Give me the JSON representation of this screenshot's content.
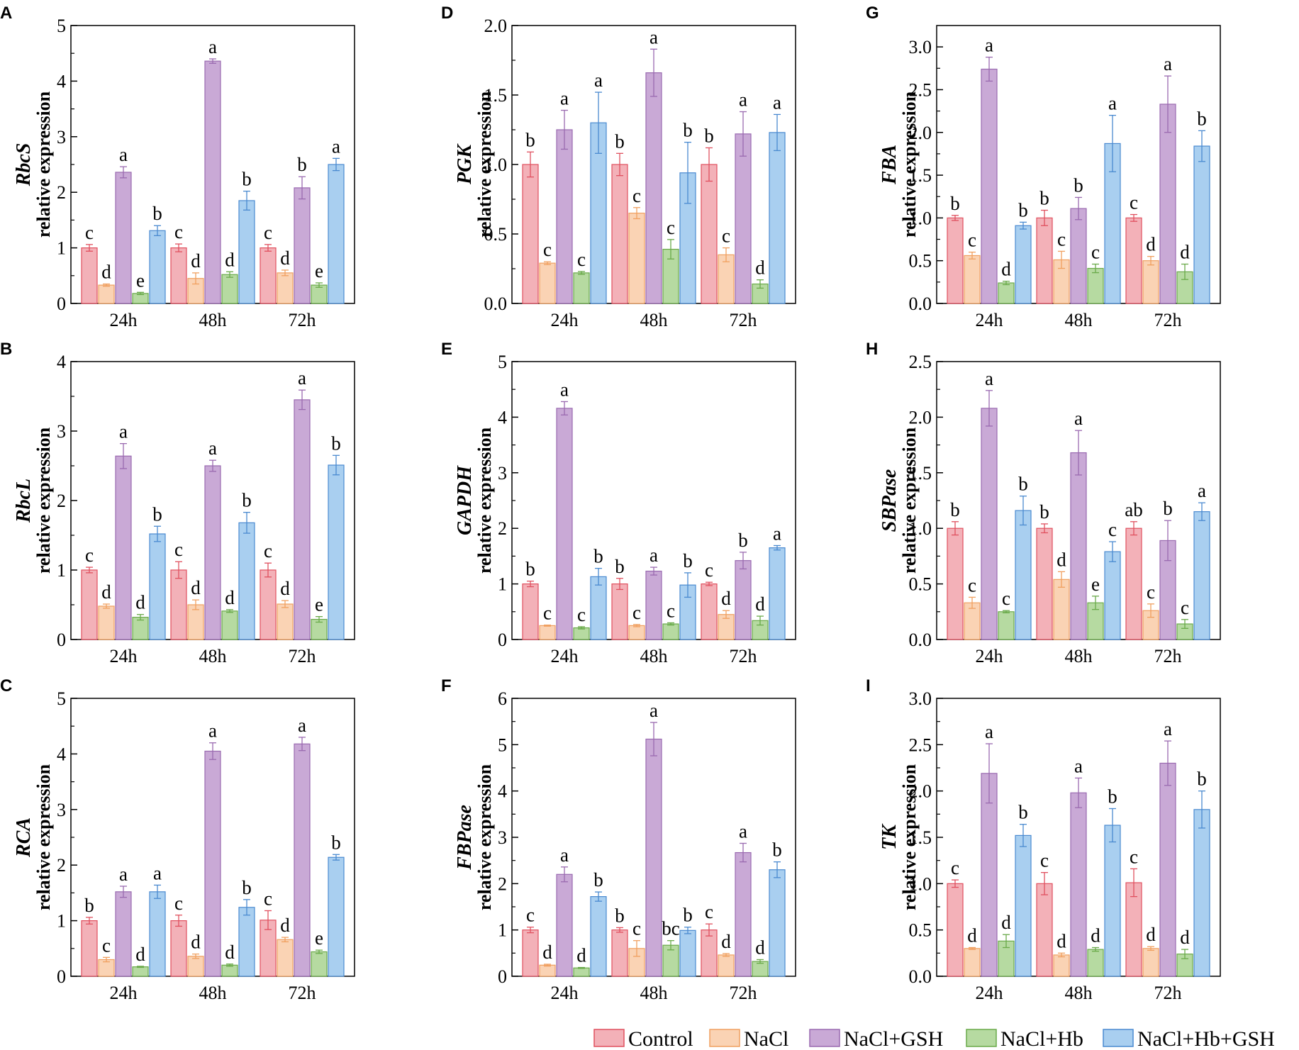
{
  "legend": [
    {
      "name": "Control",
      "fill": "#f3b1b8",
      "stroke": "#e0505f"
    },
    {
      "name": "NaCl",
      "fill": "#fad3b4",
      "stroke": "#f0a060"
    },
    {
      "name": "NaCl+GSH",
      "fill": "#c9a9d6",
      "stroke": "#9a6ab0"
    },
    {
      "name": "NaCl+Hb",
      "fill": "#b6daa1",
      "stroke": "#6aaa4a"
    },
    {
      "name": "NaCl+Hb+GSH",
      "fill": "#a9cff0",
      "stroke": "#4a8ad0"
    }
  ],
  "ylabel_suffix": "relative expression",
  "chart_data": [
    {
      "panel": "A",
      "gene": "RbcS",
      "type": "bar",
      "categories": [
        "24h",
        "48h",
        "72h"
      ],
      "ylim": [
        0,
        5
      ],
      "yticks": [
        "0",
        "1",
        "2",
        "3",
        "4",
        "5"
      ],
      "series": [
        {
          "name": "Control",
          "values": [
            1.0,
            1.0,
            1.0
          ],
          "errors": [
            0.06,
            0.07,
            0.06
          ],
          "letters": [
            "c",
            "c",
            "c"
          ]
        },
        {
          "name": "NaCl",
          "values": [
            0.33,
            0.45,
            0.55
          ],
          "errors": [
            0.02,
            0.1,
            0.05
          ],
          "letters": [
            "d",
            "d",
            "d"
          ]
        },
        {
          "name": "NaCl+GSH",
          "values": [
            2.36,
            4.36,
            2.08
          ],
          "errors": [
            0.1,
            0.04,
            0.2
          ],
          "letters": [
            "a",
            "a",
            "b"
          ]
        },
        {
          "name": "NaCl+Hb",
          "values": [
            0.18,
            0.52,
            0.33
          ],
          "errors": [
            0.02,
            0.05,
            0.04
          ],
          "letters": [
            "e",
            "d",
            "e"
          ]
        },
        {
          "name": "NaCl+Hb+GSH",
          "values": [
            1.31,
            1.85,
            2.5
          ],
          "errors": [
            0.09,
            0.17,
            0.11
          ],
          "letters": [
            "b",
            "b",
            "a"
          ]
        }
      ]
    },
    {
      "panel": "D",
      "gene": "PGK",
      "type": "bar",
      "categories": [
        "24h",
        "48h",
        "72h"
      ],
      "ylim": [
        0,
        2
      ],
      "yticks": [
        "0.0",
        "0.5",
        "1.0",
        "1.5",
        "2.0"
      ],
      "series": [
        {
          "name": "Control",
          "values": [
            1.0,
            1.0,
            1.0
          ],
          "errors": [
            0.09,
            0.08,
            0.12
          ],
          "letters": [
            "b",
            "b",
            "b"
          ]
        },
        {
          "name": "NaCl",
          "values": [
            0.29,
            0.65,
            0.35
          ],
          "errors": [
            0.01,
            0.04,
            0.05
          ],
          "letters": [
            "c",
            "c",
            "c"
          ]
        },
        {
          "name": "NaCl+GSH",
          "values": [
            1.25,
            1.66,
            1.22
          ],
          "errors": [
            0.14,
            0.17,
            0.16
          ],
          "letters": [
            "a",
            "a",
            "a"
          ]
        },
        {
          "name": "NaCl+Hb",
          "values": [
            0.22,
            0.39,
            0.14
          ],
          "errors": [
            0.01,
            0.07,
            0.03
          ],
          "letters": [
            "c",
            "c",
            "d"
          ]
        },
        {
          "name": "NaCl+Hb+GSH",
          "values": [
            1.3,
            0.94,
            1.23
          ],
          "errors": [
            0.22,
            0.22,
            0.13
          ],
          "letters": [
            "a",
            "b",
            "a"
          ]
        }
      ]
    },
    {
      "panel": "G",
      "gene": "FBA",
      "type": "bar",
      "categories": [
        "24h",
        "48h",
        "72h"
      ],
      "ylim": [
        0,
        3.25
      ],
      "yticks": [
        "0.0",
        "0.5",
        "1.0",
        "1.5",
        "2.0",
        "2.5",
        "3.0"
      ],
      "series": [
        {
          "name": "Control",
          "values": [
            1.0,
            1.0,
            1.0
          ],
          "errors": [
            0.03,
            0.09,
            0.04
          ],
          "letters": [
            "b",
            "b",
            "c"
          ]
        },
        {
          "name": "NaCl",
          "values": [
            0.56,
            0.51,
            0.5
          ],
          "errors": [
            0.04,
            0.1,
            0.05
          ],
          "letters": [
            "c",
            "c",
            "d"
          ]
        },
        {
          "name": "NaCl+GSH",
          "values": [
            2.74,
            1.11,
            2.33
          ],
          "errors": [
            0.14,
            0.13,
            0.33
          ],
          "letters": [
            "a",
            "b",
            "a"
          ]
        },
        {
          "name": "NaCl+Hb",
          "values": [
            0.24,
            0.41,
            0.37
          ],
          "errors": [
            0.02,
            0.05,
            0.09
          ],
          "letters": [
            "d",
            "c",
            "d"
          ]
        },
        {
          "name": "NaCl+Hb+GSH",
          "values": [
            0.91,
            1.87,
            1.84
          ],
          "errors": [
            0.04,
            0.33,
            0.18
          ],
          "letters": [
            "b",
            "a",
            "b"
          ]
        }
      ]
    },
    {
      "panel": "B",
      "gene": "RbcL",
      "type": "bar",
      "categories": [
        "24h",
        "48h",
        "72h"
      ],
      "ylim": [
        0,
        4
      ],
      "yticks": [
        "0",
        "1",
        "2",
        "3",
        "4"
      ],
      "series": [
        {
          "name": "Control",
          "values": [
            1.0,
            1.0,
            1.0
          ],
          "errors": [
            0.04,
            0.12,
            0.1
          ],
          "letters": [
            "c",
            "c",
            "c"
          ]
        },
        {
          "name": "NaCl",
          "values": [
            0.48,
            0.5,
            0.51
          ],
          "errors": [
            0.03,
            0.07,
            0.05
          ],
          "letters": [
            "d",
            "d",
            "d"
          ]
        },
        {
          "name": "NaCl+GSH",
          "values": [
            2.64,
            2.5,
            3.45
          ],
          "errors": [
            0.18,
            0.08,
            0.14
          ],
          "letters": [
            "a",
            "a",
            "a"
          ]
        },
        {
          "name": "NaCl+Hb",
          "values": [
            0.32,
            0.41,
            0.29
          ],
          "errors": [
            0.04,
            0.02,
            0.04
          ],
          "letters": [
            "d",
            "d",
            "e"
          ]
        },
        {
          "name": "NaCl+Hb+GSH",
          "values": [
            1.52,
            1.68,
            2.51
          ],
          "errors": [
            0.11,
            0.15,
            0.14
          ],
          "letters": [
            "b",
            "b",
            "b"
          ]
        }
      ]
    },
    {
      "panel": "E",
      "gene": "GAPDH",
      "type": "bar",
      "categories": [
        "24h",
        "48h",
        "72h"
      ],
      "ylim": [
        0,
        5
      ],
      "yticks": [
        "0",
        "1",
        "2",
        "3",
        "4",
        "5"
      ],
      "series": [
        {
          "name": "Control",
          "values": [
            1.0,
            1.0,
            1.0
          ],
          "errors": [
            0.05,
            0.1,
            0.03
          ],
          "letters": [
            "b",
            "b",
            "c"
          ]
        },
        {
          "name": "NaCl",
          "values": [
            0.25,
            0.25,
            0.45
          ],
          "errors": [
            0.01,
            0.02,
            0.07
          ],
          "letters": [
            "c",
            "c",
            "d"
          ]
        },
        {
          "name": "NaCl+GSH",
          "values": [
            4.16,
            1.23,
            1.42
          ],
          "errors": [
            0.12,
            0.07,
            0.15
          ],
          "letters": [
            "a",
            "a",
            "b"
          ]
        },
        {
          "name": "NaCl+Hb",
          "values": [
            0.21,
            0.28,
            0.34
          ],
          "errors": [
            0.02,
            0.02,
            0.08
          ],
          "letters": [
            "c",
            "c",
            "d"
          ]
        },
        {
          "name": "NaCl+Hb+GSH",
          "values": [
            1.13,
            0.98,
            1.65
          ],
          "errors": [
            0.15,
            0.22,
            0.04
          ],
          "letters": [
            "b",
            "b",
            "a"
          ]
        }
      ]
    },
    {
      "panel": "H",
      "gene": "SBPase",
      "type": "bar",
      "categories": [
        "24h",
        "48h",
        "72h"
      ],
      "ylim": [
        0,
        2.5
      ],
      "yticks": [
        "0.0",
        "0.5",
        "1.0",
        "1.5",
        "2.0",
        "2.5"
      ],
      "series": [
        {
          "name": "Control",
          "values": [
            1.0,
            1.0,
            1.0
          ],
          "errors": [
            0.06,
            0.04,
            0.06
          ],
          "letters": [
            "b",
            "b",
            "ab"
          ]
        },
        {
          "name": "NaCl",
          "values": [
            0.33,
            0.54,
            0.26
          ],
          "errors": [
            0.05,
            0.07,
            0.06
          ],
          "letters": [
            "c",
            "d",
            "c"
          ]
        },
        {
          "name": "NaCl+GSH",
          "values": [
            2.08,
            1.68,
            0.89
          ],
          "errors": [
            0.16,
            0.2,
            0.18
          ],
          "letters": [
            "a",
            "a",
            "b"
          ]
        },
        {
          "name": "NaCl+Hb",
          "values": [
            0.25,
            0.33,
            0.14
          ],
          "errors": [
            0.01,
            0.06,
            0.04
          ],
          "letters": [
            "c",
            "e",
            "c"
          ]
        },
        {
          "name": "NaCl+Hb+GSH",
          "values": [
            1.16,
            0.79,
            1.15
          ],
          "errors": [
            0.13,
            0.09,
            0.08
          ],
          "letters": [
            "b",
            "c",
            "a"
          ]
        }
      ]
    },
    {
      "panel": "C",
      "gene": "RCA",
      "type": "bar",
      "categories": [
        "24h",
        "48h",
        "72h"
      ],
      "ylim": [
        0,
        5
      ],
      "yticks": [
        "0",
        "1",
        "2",
        "3",
        "4",
        "5"
      ],
      "series": [
        {
          "name": "Control",
          "values": [
            1.0,
            1.0,
            1.01
          ],
          "errors": [
            0.06,
            0.1,
            0.17
          ],
          "letters": [
            "b",
            "c",
            "c"
          ]
        },
        {
          "name": "NaCl",
          "values": [
            0.3,
            0.36,
            0.66
          ],
          "errors": [
            0.04,
            0.04,
            0.04
          ],
          "letters": [
            "c",
            "d",
            "d"
          ]
        },
        {
          "name": "NaCl+GSH",
          "values": [
            1.52,
            4.05,
            4.18
          ],
          "errors": [
            0.1,
            0.15,
            0.12
          ],
          "letters": [
            "a",
            "a",
            "a"
          ]
        },
        {
          "name": "NaCl+Hb",
          "values": [
            0.17,
            0.2,
            0.44
          ],
          "errors": [
            0.01,
            0.02,
            0.03
          ],
          "letters": [
            "d",
            "d",
            "e"
          ]
        },
        {
          "name": "NaCl+Hb+GSH",
          "values": [
            1.52,
            1.24,
            2.14
          ],
          "errors": [
            0.12,
            0.14,
            0.05
          ],
          "letters": [
            "a",
            "b",
            "b"
          ]
        }
      ]
    },
    {
      "panel": "F",
      "gene": "FBPase",
      "type": "bar",
      "categories": [
        "24h",
        "48h",
        "72h"
      ],
      "ylim": [
        0,
        6
      ],
      "yticks": [
        "0",
        "1",
        "2",
        "3",
        "4",
        "5",
        "6"
      ],
      "series": [
        {
          "name": "Control",
          "values": [
            1.0,
            1.0,
            1.0
          ],
          "errors": [
            0.06,
            0.05,
            0.13
          ],
          "letters": [
            "c",
            "b",
            "c"
          ]
        },
        {
          "name": "NaCl",
          "values": [
            0.24,
            0.6,
            0.46
          ],
          "errors": [
            0.02,
            0.17,
            0.03
          ],
          "letters": [
            "d",
            "c",
            "d"
          ]
        },
        {
          "name": "NaCl+GSH",
          "values": [
            2.2,
            5.12,
            2.67
          ],
          "errors": [
            0.16,
            0.36,
            0.2
          ],
          "letters": [
            "a",
            "a",
            "a"
          ]
        },
        {
          "name": "NaCl+Hb",
          "values": [
            0.18,
            0.67,
            0.32
          ],
          "errors": [
            0.01,
            0.1,
            0.04
          ],
          "letters": [
            "d",
            "bc",
            "d"
          ]
        },
        {
          "name": "NaCl+Hb+GSH",
          "values": [
            1.72,
            0.99,
            2.3
          ],
          "errors": [
            0.1,
            0.07,
            0.17
          ],
          "letters": [
            "b",
            "b",
            "b"
          ]
        }
      ]
    },
    {
      "panel": "I",
      "gene": "TK",
      "type": "bar",
      "categories": [
        "24h",
        "48h",
        "72h"
      ],
      "ylim": [
        0,
        3
      ],
      "yticks": [
        "0.0",
        "0.5",
        "1.0",
        "1.5",
        "2.0",
        "2.5",
        "3.0"
      ],
      "series": [
        {
          "name": "Control",
          "values": [
            1.0,
            1.0,
            1.01
          ],
          "errors": [
            0.04,
            0.12,
            0.15
          ],
          "letters": [
            "c",
            "c",
            "c"
          ]
        },
        {
          "name": "NaCl",
          "values": [
            0.3,
            0.23,
            0.3
          ],
          "errors": [
            0.01,
            0.02,
            0.02
          ],
          "letters": [
            "d",
            "d",
            "d"
          ]
        },
        {
          "name": "NaCl+GSH",
          "values": [
            2.19,
            1.98,
            2.3
          ],
          "errors": [
            0.32,
            0.16,
            0.24
          ],
          "letters": [
            "a",
            "a",
            "a"
          ]
        },
        {
          "name": "NaCl+Hb",
          "values": [
            0.38,
            0.29,
            0.24
          ],
          "errors": [
            0.07,
            0.02,
            0.05
          ],
          "letters": [
            "d",
            "d",
            "d"
          ]
        },
        {
          "name": "NaCl+Hb+GSH",
          "values": [
            1.52,
            1.63,
            1.8
          ],
          "errors": [
            0.12,
            0.18,
            0.2
          ],
          "letters": [
            "b",
            "b",
            "b"
          ]
        }
      ]
    }
  ]
}
